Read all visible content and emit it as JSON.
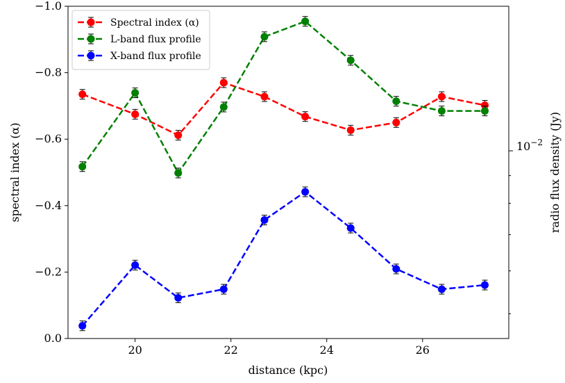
{
  "chart_data": {
    "type": "line",
    "xlabel": "distance (kpc)",
    "ylabel_left": "spectral index (α)",
    "ylabel_right": "radio flux density (Jy)",
    "xlim": [
      18.6,
      27.8
    ],
    "ylim_left": [
      0.0,
      -1.0
    ],
    "ylim_right_log": [
      0.0045,
      0.0185
    ],
    "x_ticks": [
      20,
      22,
      24,
      26
    ],
    "x_tick_labels": [
      "20",
      "22",
      "24",
      "26"
    ],
    "y_left_ticks": [
      0.0,
      -0.2,
      -0.4,
      -0.6,
      -0.8,
      -1.0
    ],
    "y_left_tick_labels": [
      "0.0",
      "−0.2",
      "−0.4",
      "−0.6",
      "−0.8",
      "−1.0"
    ],
    "y_right_major_tick": 0.01,
    "y_right_major_label_base": "10",
    "y_right_major_label_exp": "−2",
    "y_right_minor_ticks": [
      0.005,
      0.006,
      0.007,
      0.008,
      0.009
    ],
    "legend_position": "upper-left",
    "x": [
      18.9,
      20.0,
      20.9,
      21.85,
      22.7,
      23.55,
      24.5,
      25.45,
      26.4,
      27.3
    ],
    "series": [
      {
        "name": "Spectral index (α)",
        "axis": "left",
        "color": "#ff0000",
        "values": [
          -0.735,
          -0.675,
          -0.612,
          -0.77,
          -0.728,
          -0.668,
          -0.627,
          -0.65,
          -0.728,
          -0.702
        ]
      },
      {
        "name": "L-band flux profile",
        "axis": "right",
        "color": "#008000",
        "values": [
          0.00935,
          0.0128,
          0.0091,
          0.01205,
          0.01625,
          0.01735,
          0.0147,
          0.01235,
          0.01185,
          0.01185
        ]
      },
      {
        "name": "X-band flux profile",
        "axis": "right",
        "color": "#0000ff",
        "values": [
          0.00475,
          0.00615,
          0.00535,
          0.00555,
          0.00745,
          0.0084,
          0.0072,
          0.00605,
          0.00555,
          0.00565
        ]
      }
    ]
  }
}
